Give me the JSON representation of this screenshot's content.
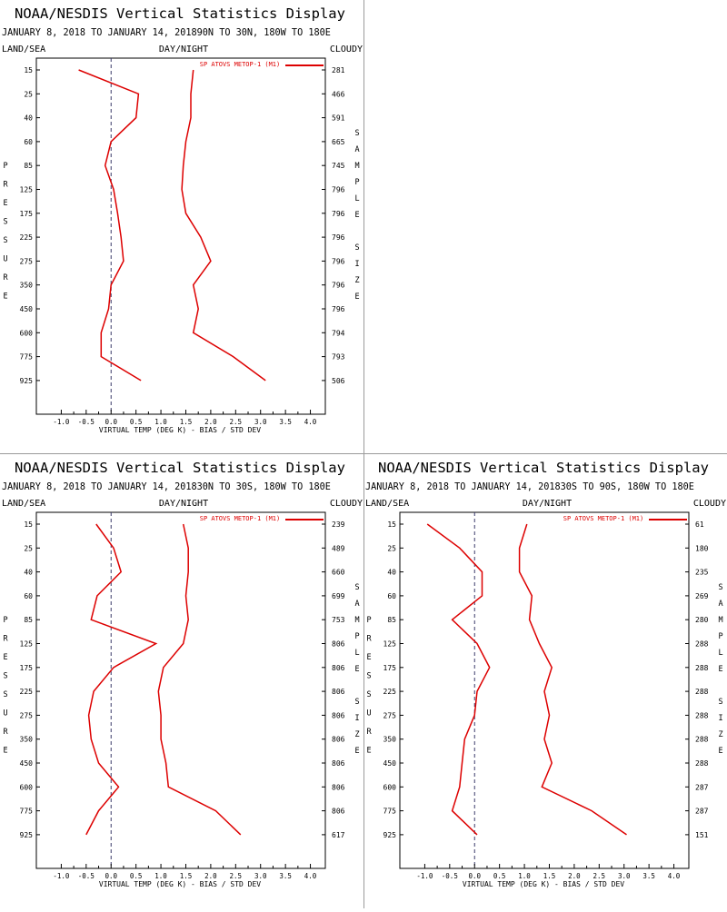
{
  "chart_data": [
    {
      "type": "line",
      "title": "NOAA/NESDIS Vertical Statistics Display",
      "subtitle": "JANUARY 8, 2018 TO JANUARY 14, 201890N TO 30N, 180W TO 180E",
      "corner_left": "LAND/SEA",
      "corner_center": "DAY/NIGHT",
      "corner_right": "CLOUDY",
      "xlabel": "VIRTUAL TEMP (DEG K) - BIAS / STD DEV",
      "ylabel": "PRESSURE",
      "y2label": "SAMPLE SIZE",
      "x_ticks": [
        "-1.0",
        "-0.5",
        "0.0",
        "0.5",
        "1.0",
        "1.5",
        "2.0",
        "2.5",
        "3.0",
        "3.5",
        "4.0"
      ],
      "pressure_levels": [
        "15",
        "25",
        "40",
        "60",
        "85",
        "125",
        "175",
        "225",
        "275",
        "350",
        "450",
        "600",
        "775",
        "925"
      ],
      "sample_size": [
        "281",
        "466",
        "591",
        "665",
        "745",
        "796",
        "796",
        "796",
        "796",
        "796",
        "796",
        "794",
        "793",
        "506"
      ],
      "xlim": [
        -1.5,
        4.3
      ],
      "legend": "SP ATOVS METOP-1 (M1)",
      "series_color": "#dd0000",
      "series": [
        {
          "values": [
            -0.65,
            0.55,
            0.5,
            0.0,
            -0.12,
            0.05,
            0.13,
            0.2,
            0.25,
            0.0,
            -0.05,
            -0.2,
            -0.2,
            0.6
          ]
        },
        {
          "values": [
            1.65,
            1.6,
            1.6,
            1.5,
            1.45,
            1.42,
            1.5,
            1.8,
            2.0,
            1.65,
            1.75,
            1.65,
            2.45,
            3.1
          ]
        }
      ]
    },
    {
      "type": "line",
      "title": "NOAA/NESDIS Vertical Statistics Display",
      "subtitle": "JANUARY 8, 2018 TO JANUARY 14, 201830N TO 30S, 180W TO 180E",
      "corner_left": "LAND/SEA",
      "corner_center": "DAY/NIGHT",
      "corner_right": "CLOUDY",
      "xlabel": "VIRTUAL TEMP (DEG K) - BIAS / STD DEV",
      "ylabel": "PRESSURE",
      "y2label": "SAMPLE SIZE",
      "x_ticks": [
        "-1.0",
        "-0.5",
        "0.0",
        "0.5",
        "1.0",
        "1.5",
        "2.0",
        "2.5",
        "3.0",
        "3.5",
        "4.0"
      ],
      "pressure_levels": [
        "15",
        "25",
        "40",
        "60",
        "85",
        "125",
        "175",
        "225",
        "275",
        "350",
        "450",
        "600",
        "775",
        "925"
      ],
      "sample_size": [
        "239",
        "489",
        "660",
        "699",
        "753",
        "806",
        "806",
        "806",
        "806",
        "806",
        "806",
        "806",
        "806",
        "617"
      ],
      "xlim": [
        -1.5,
        4.3
      ],
      "legend": "SP ATOVS METOP-1 (M1)",
      "series_color": "#dd0000",
      "series": [
        {
          "values": [
            -0.3,
            0.05,
            0.2,
            -0.28,
            -0.4,
            0.9,
            0.05,
            -0.35,
            -0.45,
            -0.4,
            -0.25,
            0.15,
            -0.25,
            -0.5
          ]
        },
        {
          "values": [
            1.45,
            1.55,
            1.55,
            1.5,
            1.55,
            1.45,
            1.05,
            0.95,
            1.0,
            1.0,
            1.1,
            1.15,
            2.1,
            2.6
          ]
        }
      ]
    },
    {
      "type": "line",
      "title": "NOAA/NESDIS Vertical Statistics Display",
      "subtitle": "JANUARY 8, 2018 TO JANUARY 14, 201830S TO 90S, 180W TO 180E",
      "corner_left": "LAND/SEA",
      "corner_center": "DAY/NIGHT",
      "corner_right": "CLOUDY",
      "xlabel": "VIRTUAL TEMP (DEG K) - BIAS / STD DEV",
      "ylabel": "PRESSURE",
      "y2label": "SAMPLE SIZE",
      "x_ticks": [
        "-1.0",
        "-0.5",
        "0.0",
        "0.5",
        "1.0",
        "1.5",
        "2.0",
        "2.5",
        "3.0",
        "3.5",
        "4.0"
      ],
      "pressure_levels": [
        "15",
        "25",
        "40",
        "60",
        "85",
        "125",
        "175",
        "225",
        "275",
        "350",
        "450",
        "600",
        "775",
        "925"
      ],
      "sample_size": [
        "61",
        "180",
        "235",
        "269",
        "280",
        "288",
        "288",
        "288",
        "288",
        "288",
        "288",
        "287",
        "287",
        "151"
      ],
      "xlim": [
        -1.5,
        4.3
      ],
      "legend": "SP ATOVS METOP-1 (M1)",
      "series_color": "#dd0000",
      "series": [
        {
          "values": [
            -0.95,
            -0.3,
            0.15,
            0.15,
            -0.45,
            0.05,
            0.3,
            0.05,
            0.0,
            -0.2,
            -0.25,
            -0.3,
            -0.45,
            0.05
          ]
        },
        {
          "values": [
            1.05,
            0.9,
            0.9,
            1.15,
            1.1,
            1.3,
            1.55,
            1.4,
            1.5,
            1.4,
            1.55,
            1.35,
            2.35,
            3.05
          ]
        }
      ]
    }
  ]
}
